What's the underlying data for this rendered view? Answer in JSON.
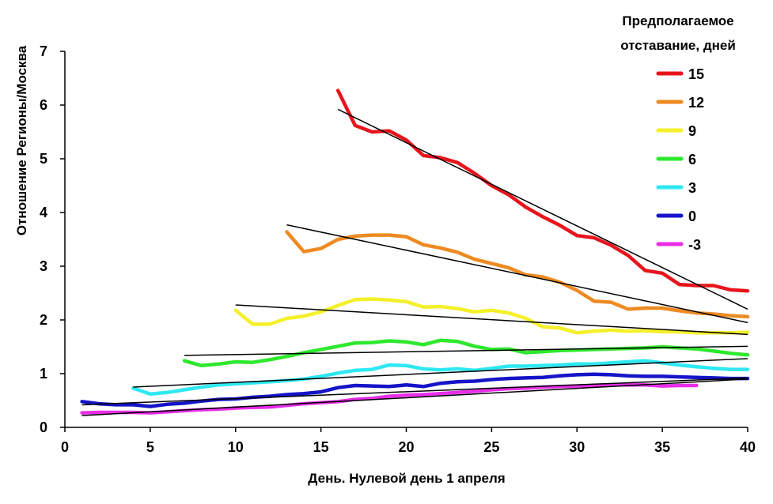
{
  "chart_data": {
    "type": "line",
    "title": "",
    "xlabel": "День. Нулевой день 1 апреля",
    "ylabel": "Отношение Регионы/Москва",
    "xlim": [
      0,
      40
    ],
    "ylim": [
      0,
      7
    ],
    "xticks": [
      "0",
      "5",
      "10",
      "15",
      "20",
      "25",
      "30",
      "35",
      "40"
    ],
    "yticks": [
      "0",
      "1",
      "2",
      "3",
      "4",
      "5",
      "6",
      "7"
    ],
    "grid": false,
    "legend": {
      "title_lines": [
        "Предполагаемое",
        "отставание, дней"
      ],
      "placement": "top-right"
    },
    "series": [
      {
        "name": "15",
        "color": "#e8141c",
        "points": [
          [
            16,
            6.27
          ],
          [
            17,
            5.62
          ],
          [
            18,
            5.5
          ],
          [
            19,
            5.52
          ],
          [
            20,
            5.35
          ],
          [
            21,
            5.06
          ],
          [
            22,
            5.02
          ],
          [
            23,
            4.93
          ],
          [
            24,
            4.73
          ],
          [
            25,
            4.5
          ],
          [
            26,
            4.33
          ],
          [
            27,
            4.1
          ],
          [
            28,
            3.92
          ],
          [
            29,
            3.76
          ],
          [
            30,
            3.57
          ],
          [
            31,
            3.53
          ],
          [
            32,
            3.39
          ],
          [
            33,
            3.2
          ],
          [
            34,
            2.92
          ],
          [
            35,
            2.87
          ],
          [
            36,
            2.66
          ],
          [
            37,
            2.64
          ],
          [
            38,
            2.64
          ],
          [
            39,
            2.56
          ],
          [
            40,
            2.54
          ]
        ]
      },
      {
        "name": "12",
        "color": "#ee8a22",
        "points": [
          [
            13,
            3.64
          ],
          [
            14,
            3.27
          ],
          [
            15,
            3.33
          ],
          [
            16,
            3.5
          ],
          [
            17,
            3.56
          ],
          [
            18,
            3.58
          ],
          [
            19,
            3.58
          ],
          [
            20,
            3.55
          ],
          [
            21,
            3.4
          ],
          [
            22,
            3.34
          ],
          [
            23,
            3.26
          ],
          [
            24,
            3.13
          ],
          [
            25,
            3.05
          ],
          [
            26,
            2.97
          ],
          [
            27,
            2.84
          ],
          [
            28,
            2.8
          ],
          [
            29,
            2.7
          ],
          [
            30,
            2.55
          ],
          [
            31,
            2.35
          ],
          [
            32,
            2.33
          ],
          [
            33,
            2.2
          ],
          [
            34,
            2.22
          ],
          [
            35,
            2.22
          ],
          [
            36,
            2.17
          ],
          [
            37,
            2.13
          ],
          [
            38,
            2.11
          ],
          [
            39,
            2.08
          ],
          [
            40,
            2.06
          ]
        ]
      },
      {
        "name": "9",
        "color": "#f4f02a",
        "points": [
          [
            10,
            2.18
          ],
          [
            11,
            1.92
          ],
          [
            12,
            1.92
          ],
          [
            13,
            2.03
          ],
          [
            14,
            2.07
          ],
          [
            15,
            2.15
          ],
          [
            16,
            2.27
          ],
          [
            17,
            2.38
          ],
          [
            18,
            2.39
          ],
          [
            19,
            2.37
          ],
          [
            20,
            2.34
          ],
          [
            21,
            2.24
          ],
          [
            22,
            2.25
          ],
          [
            23,
            2.21
          ],
          [
            24,
            2.15
          ],
          [
            25,
            2.18
          ],
          [
            26,
            2.13
          ],
          [
            27,
            2.03
          ],
          [
            28,
            1.87
          ],
          [
            29,
            1.85
          ],
          [
            30,
            1.76
          ],
          [
            31,
            1.79
          ],
          [
            32,
            1.81
          ],
          [
            33,
            1.79
          ],
          [
            34,
            1.8
          ],
          [
            35,
            1.78
          ],
          [
            36,
            1.78
          ],
          [
            37,
            1.76
          ],
          [
            38,
            1.76
          ],
          [
            39,
            1.76
          ],
          [
            40,
            1.77
          ]
        ]
      },
      {
        "name": "6",
        "color": "#2ee82e",
        "points": [
          [
            7,
            1.24
          ],
          [
            8,
            1.15
          ],
          [
            9,
            1.18
          ],
          [
            10,
            1.22
          ],
          [
            11,
            1.21
          ],
          [
            12,
            1.26
          ],
          [
            13,
            1.32
          ],
          [
            14,
            1.39
          ],
          [
            15,
            1.45
          ],
          [
            16,
            1.51
          ],
          [
            17,
            1.57
          ],
          [
            18,
            1.58
          ],
          [
            19,
            1.61
          ],
          [
            20,
            1.59
          ],
          [
            21,
            1.54
          ],
          [
            22,
            1.62
          ],
          [
            23,
            1.6
          ],
          [
            24,
            1.51
          ],
          [
            25,
            1.45
          ],
          [
            26,
            1.46
          ],
          [
            27,
            1.39
          ],
          [
            28,
            1.41
          ],
          [
            29,
            1.43
          ],
          [
            30,
            1.44
          ],
          [
            31,
            1.45
          ],
          [
            32,
            1.46
          ],
          [
            33,
            1.47
          ],
          [
            34,
            1.48
          ],
          [
            35,
            1.5
          ],
          [
            36,
            1.48
          ],
          [
            37,
            1.46
          ],
          [
            38,
            1.42
          ],
          [
            39,
            1.38
          ],
          [
            40,
            1.35
          ]
        ]
      },
      {
        "name": "3",
        "color": "#2ee8f2",
        "points": [
          [
            4,
            0.73
          ],
          [
            5,
            0.62
          ],
          [
            6,
            0.65
          ],
          [
            7,
            0.7
          ],
          [
            8,
            0.75
          ],
          [
            9,
            0.79
          ],
          [
            10,
            0.81
          ],
          [
            11,
            0.83
          ],
          [
            12,
            0.85
          ],
          [
            13,
            0.87
          ],
          [
            14,
            0.9
          ],
          [
            15,
            0.95
          ],
          [
            16,
            1.01
          ],
          [
            17,
            1.06
          ],
          [
            18,
            1.08
          ],
          [
            19,
            1.16
          ],
          [
            20,
            1.15
          ],
          [
            21,
            1.09
          ],
          [
            22,
            1.07
          ],
          [
            23,
            1.09
          ],
          [
            24,
            1.06
          ],
          [
            25,
            1.1
          ],
          [
            26,
            1.14
          ],
          [
            27,
            1.14
          ],
          [
            28,
            1.15
          ],
          [
            29,
            1.16
          ],
          [
            30,
            1.18
          ],
          [
            31,
            1.18
          ],
          [
            32,
            1.2
          ],
          [
            33,
            1.22
          ],
          [
            34,
            1.24
          ],
          [
            35,
            1.2
          ],
          [
            36,
            1.16
          ],
          [
            37,
            1.13
          ],
          [
            38,
            1.1
          ],
          [
            39,
            1.08
          ],
          [
            40,
            1.08
          ]
        ]
      },
      {
        "name": "0",
        "color": "#1414c8",
        "points": [
          [
            1,
            0.48
          ],
          [
            2,
            0.44
          ],
          [
            3,
            0.42
          ],
          [
            4,
            0.42
          ],
          [
            5,
            0.39
          ],
          [
            6,
            0.43
          ],
          [
            7,
            0.45
          ],
          [
            8,
            0.49
          ],
          [
            9,
            0.52
          ],
          [
            10,
            0.53
          ],
          [
            11,
            0.56
          ],
          [
            12,
            0.58
          ],
          [
            13,
            0.61
          ],
          [
            14,
            0.63
          ],
          [
            15,
            0.66
          ],
          [
            16,
            0.74
          ],
          [
            17,
            0.78
          ],
          [
            18,
            0.77
          ],
          [
            19,
            0.76
          ],
          [
            20,
            0.79
          ],
          [
            21,
            0.76
          ],
          [
            22,
            0.82
          ],
          [
            23,
            0.85
          ],
          [
            24,
            0.86
          ],
          [
            25,
            0.89
          ],
          [
            26,
            0.91
          ],
          [
            27,
            0.92
          ],
          [
            28,
            0.93
          ],
          [
            29,
            0.96
          ],
          [
            30,
            0.98
          ],
          [
            31,
            0.99
          ],
          [
            32,
            0.98
          ],
          [
            33,
            0.96
          ],
          [
            34,
            0.95
          ],
          [
            35,
            0.95
          ],
          [
            36,
            0.94
          ],
          [
            37,
            0.93
          ],
          [
            38,
            0.92
          ],
          [
            39,
            0.91
          ],
          [
            40,
            0.91
          ]
        ]
      },
      {
        "name": "-3",
        "color": "#e82ee8",
        "points": [
          [
            1,
            0.27
          ],
          [
            2,
            0.28
          ],
          [
            3,
            0.28
          ],
          [
            4,
            0.28
          ],
          [
            5,
            0.27
          ],
          [
            6,
            0.29
          ],
          [
            7,
            0.31
          ],
          [
            8,
            0.33
          ],
          [
            9,
            0.34
          ],
          [
            10,
            0.36
          ],
          [
            11,
            0.37
          ],
          [
            12,
            0.38
          ],
          [
            13,
            0.41
          ],
          [
            14,
            0.44
          ],
          [
            15,
            0.46
          ],
          [
            16,
            0.48
          ],
          [
            17,
            0.52
          ],
          [
            18,
            0.54
          ],
          [
            19,
            0.58
          ],
          [
            20,
            0.6
          ],
          [
            21,
            0.61
          ],
          [
            22,
            0.63
          ],
          [
            23,
            0.65
          ],
          [
            24,
            0.67
          ],
          [
            25,
            0.7
          ],
          [
            26,
            0.72
          ],
          [
            27,
            0.73
          ],
          [
            28,
            0.75
          ],
          [
            29,
            0.76
          ],
          [
            30,
            0.77
          ],
          [
            31,
            0.78
          ],
          [
            32,
            0.79
          ],
          [
            33,
            0.79
          ],
          [
            34,
            0.79
          ],
          [
            35,
            0.77
          ],
          [
            36,
            0.78
          ],
          [
            37,
            0.78
          ]
        ]
      }
    ],
    "trendlines": [
      {
        "series": "15",
        "x": [
          16,
          40
        ],
        "y": [
          5.92,
          2.2
        ]
      },
      {
        "series": "12",
        "x": [
          13,
          40
        ],
        "y": [
          3.77,
          1.95
        ]
      },
      {
        "series": "9",
        "x": [
          10,
          40
        ],
        "y": [
          2.28,
          1.73
        ]
      },
      {
        "series": "6",
        "x": [
          7,
          40
        ],
        "y": [
          1.34,
          1.51
        ]
      },
      {
        "series": "3",
        "x": [
          4,
          40
        ],
        "y": [
          0.75,
          1.28
        ]
      },
      {
        "series": "0",
        "x": [
          1,
          40
        ],
        "y": [
          0.42,
          0.92
        ]
      },
      {
        "series": "-3",
        "x": [
          1,
          40
        ],
        "y": [
          0.22,
          0.9
        ]
      }
    ]
  }
}
